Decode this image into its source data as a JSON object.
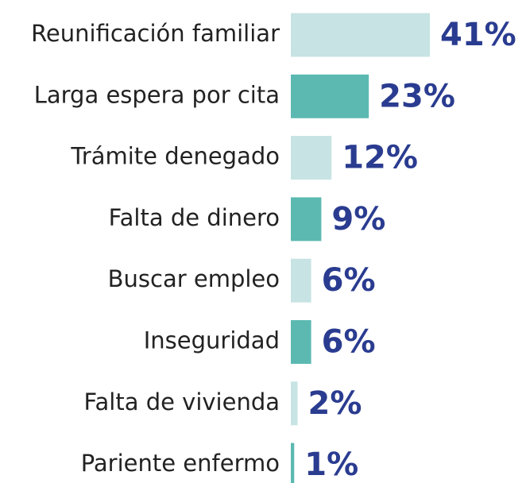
{
  "chart_data": {
    "type": "barh",
    "categories": [
      "Reunificación familiar",
      "Larga espera por cita",
      "Trámite denegado",
      "Falta de dinero",
      "Buscar empleo",
      "Inseguridad",
      "Falta de vivienda",
      "Pariente enfermo"
    ],
    "values": [
      41,
      23,
      12,
      9,
      6,
      6,
      2,
      1
    ],
    "value_labels": [
      "41%",
      "23%",
      "12%",
      "9%",
      "6%",
      "6%",
      "2%",
      "1%"
    ],
    "colors": [
      "#c7e3e3",
      "#5cb9b1",
      "#c7e3e3",
      "#5cb9b1",
      "#c7e3e3",
      "#5cb9b1",
      "#c7e3e3",
      "#5cb9b1"
    ],
    "label_color": "#2a3c90"
  }
}
